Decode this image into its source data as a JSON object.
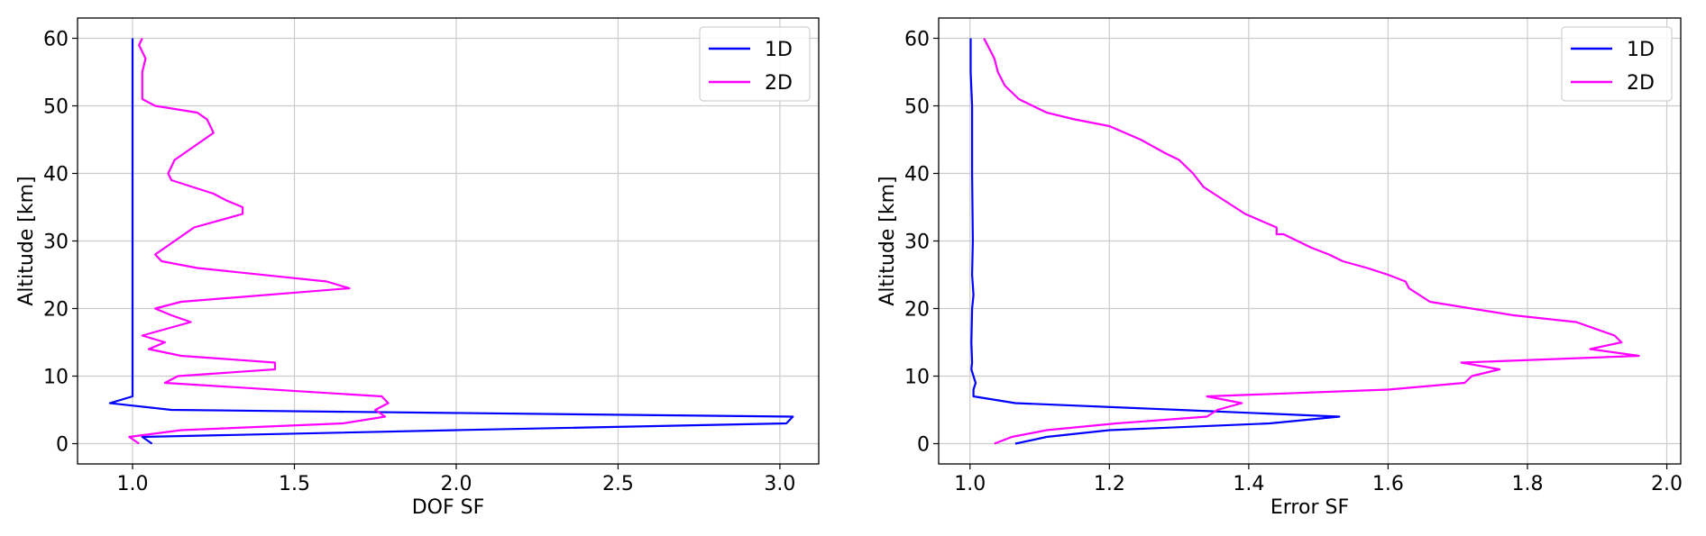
{
  "chart_data": [
    {
      "type": "line",
      "xlabel": "DOF SF",
      "ylabel": "Altitude [km]",
      "xlim": [
        0.83,
        3.12
      ],
      "ylim": [
        -3,
        63
      ],
      "xticks": [
        1.0,
        1.5,
        2.0,
        2.5,
        3.0
      ],
      "xtick_labels": [
        "1.0",
        "1.5",
        "2.0",
        "2.5",
        "3.0"
      ],
      "yticks": [
        0,
        10,
        20,
        30,
        40,
        50,
        60
      ],
      "ytick_labels": [
        "0",
        "10",
        "20",
        "30",
        "40",
        "50",
        "60"
      ],
      "grid": true,
      "legend_position": "top-right",
      "series": [
        {
          "name": "1D",
          "color": "#0000ff",
          "points": [
            [
              1.06,
              0
            ],
            [
              1.03,
              1
            ],
            [
              2.0,
              2
            ],
            [
              3.02,
              3
            ],
            [
              3.04,
              4
            ],
            [
              1.12,
              5
            ],
            [
              0.93,
              6
            ],
            [
              1.0,
              7
            ],
            [
              1.0,
              8
            ],
            [
              1.0,
              10
            ],
            [
              1.0,
              15
            ],
            [
              1.0,
              20
            ],
            [
              1.0,
              22
            ],
            [
              1.0,
              25
            ],
            [
              1.0,
              30
            ],
            [
              1.0,
              40
            ],
            [
              1.0,
              50
            ],
            [
              1.0,
              60
            ]
          ]
        },
        {
          "name": "2D",
          "color": "#ff00ff",
          "points": [
            [
              1.02,
              0
            ],
            [
              0.99,
              1
            ],
            [
              1.15,
              2
            ],
            [
              1.65,
              3
            ],
            [
              1.78,
              4
            ],
            [
              1.75,
              5
            ],
            [
              1.79,
              6
            ],
            [
              1.77,
              7
            ],
            [
              1.1,
              9
            ],
            [
              1.14,
              10
            ],
            [
              1.44,
              11
            ],
            [
              1.44,
              12
            ],
            [
              1.15,
              13
            ],
            [
              1.05,
              14
            ],
            [
              1.1,
              15
            ],
            [
              1.03,
              16
            ],
            [
              1.18,
              18
            ],
            [
              1.12,
              19
            ],
            [
              1.07,
              20
            ],
            [
              1.15,
              21
            ],
            [
              1.67,
              23
            ],
            [
              1.6,
              24
            ],
            [
              1.2,
              26
            ],
            [
              1.09,
              27
            ],
            [
              1.07,
              28
            ],
            [
              1.13,
              30
            ],
            [
              1.19,
              32
            ],
            [
              1.34,
              34
            ],
            [
              1.34,
              35
            ],
            [
              1.29,
              36
            ],
            [
              1.25,
              37
            ],
            [
              1.12,
              39
            ],
            [
              1.11,
              40
            ],
            [
              1.13,
              42
            ],
            [
              1.16,
              43
            ],
            [
              1.22,
              45
            ],
            [
              1.25,
              46
            ],
            [
              1.24,
              47
            ],
            [
              1.23,
              48
            ],
            [
              1.2,
              49
            ],
            [
              1.07,
              50
            ],
            [
              1.03,
              51
            ],
            [
              1.03,
              53
            ],
            [
              1.03,
              55
            ],
            [
              1.04,
              57
            ],
            [
              1.03,
              58
            ],
            [
              1.02,
              59
            ],
            [
              1.03,
              60
            ]
          ]
        }
      ]
    },
    {
      "type": "line",
      "xlabel": "Error SF",
      "ylabel": "Altitude [km]",
      "xlim": [
        0.955,
        2.02
      ],
      "ylim": [
        -3,
        63
      ],
      "xticks": [
        1.0,
        1.2,
        1.4,
        1.6,
        1.8,
        2.0
      ],
      "xtick_labels": [
        "1.0",
        "1.2",
        "1.4",
        "1.6",
        "1.8",
        "2.0"
      ],
      "yticks": [
        0,
        10,
        20,
        30,
        40,
        50,
        60
      ],
      "ytick_labels": [
        "0",
        "10",
        "20",
        "30",
        "40",
        "50",
        "60"
      ],
      "grid": true,
      "legend_position": "top-right",
      "series": [
        {
          "name": "1D",
          "color": "#0000ff",
          "points": [
            [
              1.065,
              0
            ],
            [
              1.11,
              1
            ],
            [
              1.2,
              2
            ],
            [
              1.43,
              3
            ],
            [
              1.53,
              4
            ],
            [
              1.3,
              5
            ],
            [
              1.065,
              6
            ],
            [
              1.005,
              7
            ],
            [
              1.005,
              8
            ],
            [
              1.008,
              9
            ],
            [
              1.005,
              10
            ],
            [
              1.002,
              11
            ],
            [
              1.003,
              12
            ],
            [
              1.002,
              15
            ],
            [
              1.003,
              20
            ],
            [
              1.005,
              22
            ],
            [
              1.003,
              25
            ],
            [
              1.004,
              30
            ],
            [
              1.003,
              40
            ],
            [
              1.003,
              50
            ],
            [
              1.001,
              55
            ],
            [
              1.001,
              60
            ]
          ]
        },
        {
          "name": "2D",
          "color": "#ff00ff",
          "points": [
            [
              1.035,
              0
            ],
            [
              1.06,
              1
            ],
            [
              1.11,
              2
            ],
            [
              1.21,
              3
            ],
            [
              1.34,
              4
            ],
            [
              1.355,
              5
            ],
            [
              1.39,
              6
            ],
            [
              1.34,
              7
            ],
            [
              1.6,
              8
            ],
            [
              1.71,
              9
            ],
            [
              1.72,
              10
            ],
            [
              1.76,
              11
            ],
            [
              1.705,
              12
            ],
            [
              1.96,
              13
            ],
            [
              1.89,
              14
            ],
            [
              1.935,
              15
            ],
            [
              1.925,
              16
            ],
            [
              1.87,
              18
            ],
            [
              1.78,
              19
            ],
            [
              1.66,
              21
            ],
            [
              1.645,
              22
            ],
            [
              1.63,
              23
            ],
            [
              1.625,
              24
            ],
            [
              1.6,
              25
            ],
            [
              1.57,
              26
            ],
            [
              1.535,
              27
            ],
            [
              1.515,
              28
            ],
            [
              1.49,
              29
            ],
            [
              1.45,
              31
            ],
            [
              1.44,
              31
            ],
            [
              1.44,
              32
            ],
            [
              1.395,
              34
            ],
            [
              1.365,
              36
            ],
            [
              1.35,
              37
            ],
            [
              1.335,
              38
            ],
            [
              1.32,
              40
            ],
            [
              1.3,
              42
            ],
            [
              1.28,
              43
            ],
            [
              1.245,
              45
            ],
            [
              1.2,
              47
            ],
            [
              1.15,
              48
            ],
            [
              1.11,
              49
            ],
            [
              1.09,
              50
            ],
            [
              1.07,
              51
            ],
            [
              1.06,
              52
            ],
            [
              1.05,
              53
            ],
            [
              1.04,
              55
            ],
            [
              1.035,
              57
            ],
            [
              1.03,
              58
            ],
            [
              1.025,
              59
            ],
            [
              1.02,
              60
            ]
          ]
        }
      ]
    }
  ]
}
